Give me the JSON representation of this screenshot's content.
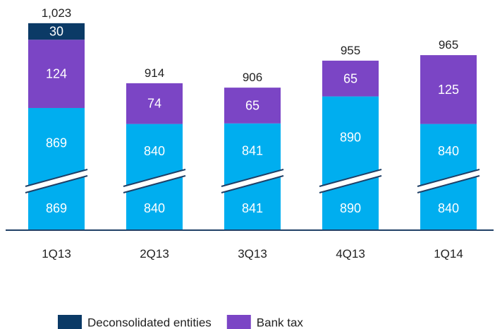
{
  "chart_data": {
    "type": "bar",
    "stacked": true,
    "broken_axis": true,
    "categories": [
      "1Q13",
      "2Q13",
      "3Q13",
      "4Q13",
      "1Q14"
    ],
    "series": [
      {
        "name": "",
        "values": [
          869,
          840,
          841,
          890,
          840
        ],
        "labels": [
          "869",
          "840",
          "841",
          "890",
          "840"
        ],
        "color": "#00AEEF"
      },
      {
        "name": "Bank tax",
        "values": [
          124,
          74,
          65,
          65,
          125
        ],
        "labels": [
          "124",
          "74",
          "65",
          "65",
          "125"
        ],
        "color": "#7B45C5"
      },
      {
        "name": "Deconsolidated entities",
        "values": [
          30,
          0,
          0,
          0,
          0
        ],
        "labels": [
          "30",
          "",
          "",
          "",
          ""
        ],
        "color": "#0B3A66"
      }
    ],
    "totals": [
      "1,023",
      "914",
      "906",
      "955",
      "965"
    ],
    "legend": [
      {
        "label": "Deconsolidated entities",
        "color": "#0B3A66"
      },
      {
        "label": "Bank tax",
        "color": "#7B45C5"
      }
    ],
    "legend_position": "bottom",
    "grid": false,
    "title": "",
    "xlabel": "",
    "ylabel": ""
  }
}
